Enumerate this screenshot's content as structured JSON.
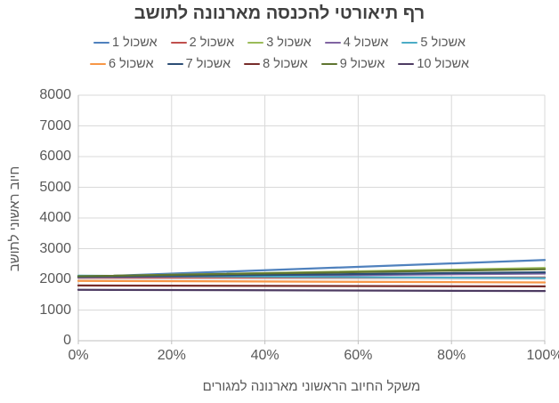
{
  "chart_data": {
    "type": "line",
    "title": "רף תיאורטי להכנסה מארנונה לתושב",
    "xlabel": "משקל החיוב הראשוני מארנונה למגורים",
    "ylabel": "חיוב ראשוני לתושב",
    "x": [
      0,
      100
    ],
    "x_ticks": [
      "0%",
      "20%",
      "40%",
      "60%",
      "80%",
      "100%"
    ],
    "ylim": [
      0,
      8000
    ],
    "y_tick_step": 1000,
    "y_ticks": [
      "0",
      "1000",
      "2000",
      "3000",
      "4000",
      "5000",
      "6000",
      "7000",
      "8000"
    ],
    "grid": true,
    "legend_position": "top",
    "legend_rows": 2,
    "series": [
      {
        "name": "אשכול 1",
        "color": "#4F81BD",
        "values": [
          2075,
          2630
        ]
      },
      {
        "name": "אשכול 2",
        "color": "#C0504D",
        "values": [
          2055,
          2060
        ]
      },
      {
        "name": "אשכול 3",
        "color": "#9BBB59",
        "values": [
          2095,
          2370
        ]
      },
      {
        "name": "אשכול 4",
        "color": "#8064A2",
        "values": [
          2065,
          2190
        ]
      },
      {
        "name": "אשכול 5",
        "color": "#4BACC6",
        "values": [
          2120,
          2040
        ]
      },
      {
        "name": "אשכול 6",
        "color": "#F79646",
        "values": [
          1950,
          1900
        ]
      },
      {
        "name": "אשכול 7",
        "color": "#2C4D75",
        "values": [
          2085,
          2230
        ]
      },
      {
        "name": "אשכול 8",
        "color": "#772C2A",
        "values": [
          1800,
          1770
        ]
      },
      {
        "name": "אשכול 9",
        "color": "#5F7530",
        "values": [
          2100,
          2330
        ]
      },
      {
        "name": "אשכול 10",
        "color": "#4D3B62",
        "values": [
          1660,
          1620
        ]
      }
    ],
    "colors": {
      "axis_text": "#595959",
      "title_text": "#404040",
      "gridline": "#D9D9D9",
      "axis_line": "#BFBFBF"
    }
  }
}
